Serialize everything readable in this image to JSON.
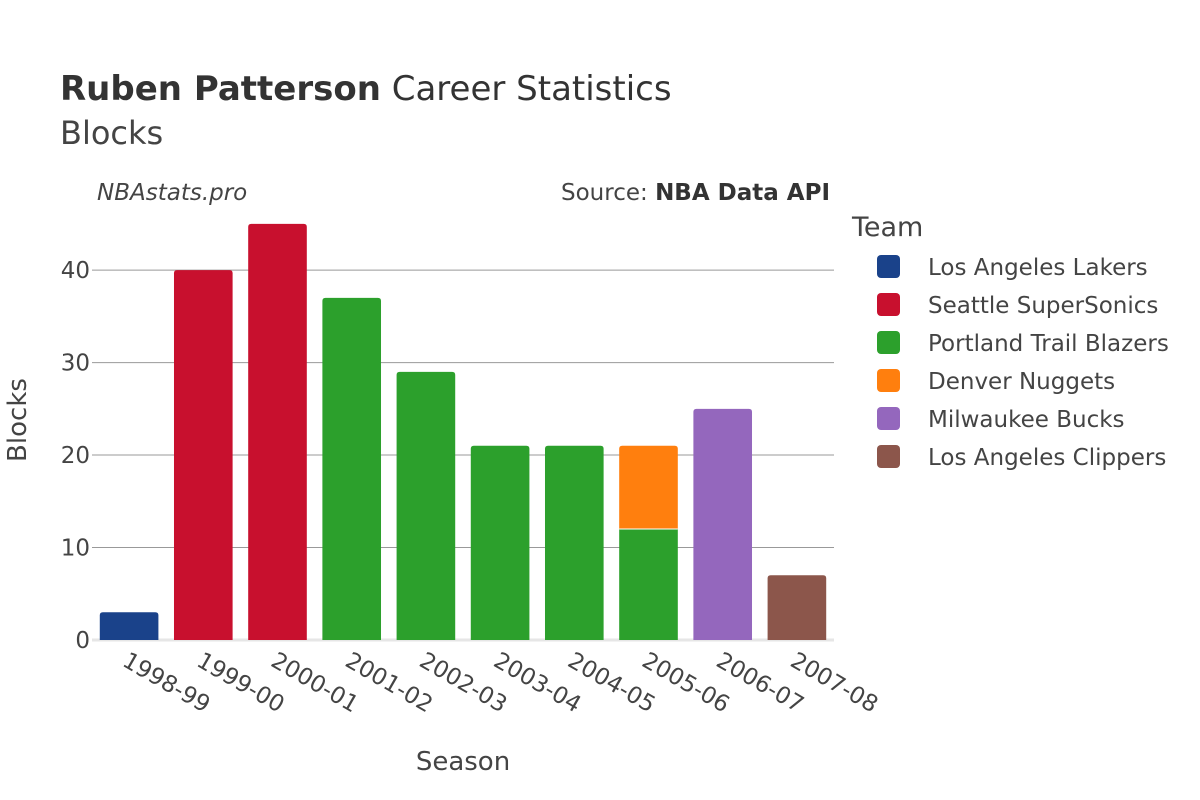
{
  "chart_data": {
    "type": "bar",
    "stacked": true,
    "title": {
      "player": "Ruben Patterson",
      "rest": " Career Statistics",
      "subtitle": "Blocks"
    },
    "watermark": "NBAstats.pro",
    "source": {
      "prefix": "Source: ",
      "name": "NBA Data API"
    },
    "xlabel": "Season",
    "ylabel": "Blocks",
    "ylim": [
      0,
      46.5
    ],
    "yticks": [
      0,
      10,
      20,
      30,
      40
    ],
    "grid": true,
    "legend": {
      "title": "Team",
      "placement": "right"
    },
    "categories": [
      "1998-99",
      "1999-00",
      "2000-01",
      "2001-02",
      "2002-03",
      "2003-04",
      "2004-05",
      "2005-06",
      "2006-07",
      "2007-08"
    ],
    "series": [
      {
        "name": "Los Angeles Lakers",
        "color": "#1a428a",
        "values": [
          3,
          0,
          0,
          0,
          0,
          0,
          0,
          0,
          0,
          0
        ]
      },
      {
        "name": "Seattle SuperSonics",
        "color": "#c8102e",
        "values": [
          0,
          40,
          45,
          0,
          0,
          0,
          0,
          0,
          0,
          0
        ]
      },
      {
        "name": "Portland Trail Blazers",
        "color": "#2ca02c",
        "values": [
          0,
          0,
          0,
          37,
          29,
          21,
          21,
          12,
          0,
          0
        ]
      },
      {
        "name": "Denver Nuggets",
        "color": "#ff7f0e",
        "values": [
          0,
          0,
          0,
          0,
          0,
          0,
          0,
          9,
          0,
          0
        ]
      },
      {
        "name": "Milwaukee Bucks",
        "color": "#9467bd",
        "values": [
          0,
          0,
          0,
          0,
          0,
          0,
          0,
          0,
          25,
          0
        ]
      },
      {
        "name": "Los Angeles Clippers",
        "color": "#8c564b",
        "values": [
          0,
          0,
          0,
          0,
          0,
          0,
          0,
          0,
          0,
          7
        ]
      }
    ]
  }
}
